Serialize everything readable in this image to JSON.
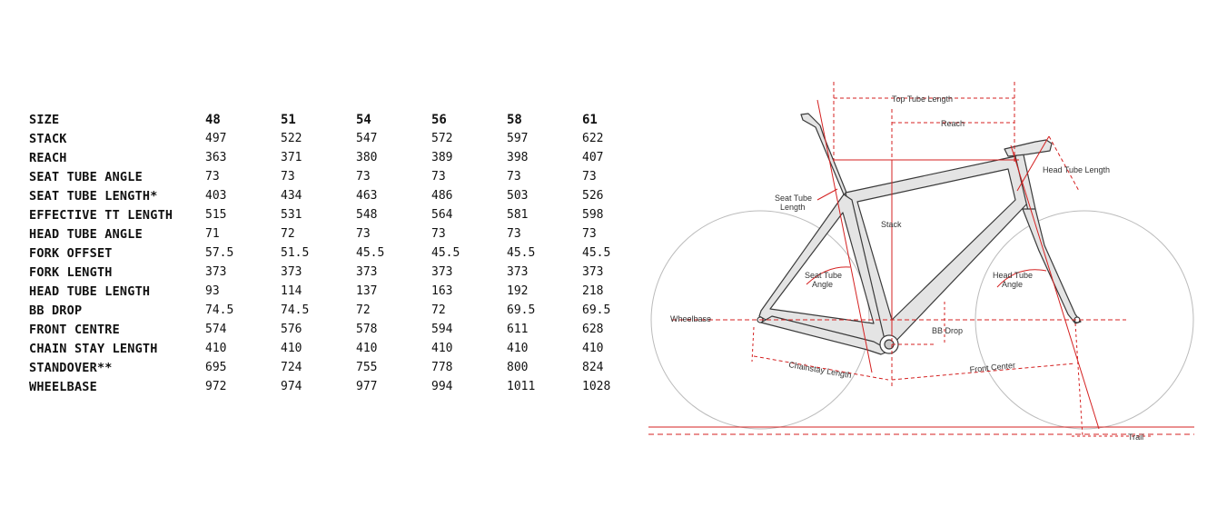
{
  "table": {
    "header_label": "SIZE",
    "sizes": [
      "48",
      "51",
      "54",
      "56",
      "58",
      "61"
    ],
    "rows": [
      {
        "label": "STACK",
        "values": [
          "497",
          "522",
          "547",
          "572",
          "597",
          "622"
        ]
      },
      {
        "label": "REACH",
        "values": [
          "363",
          "371",
          "380",
          "389",
          "398",
          "407"
        ]
      },
      {
        "label": "SEAT TUBE ANGLE",
        "values": [
          "73",
          "73",
          "73",
          "73",
          "73",
          "73"
        ]
      },
      {
        "label": "SEAT TUBE LENGTH*",
        "values": [
          "403",
          "434",
          "463",
          "486",
          "503",
          "526"
        ]
      },
      {
        "label": "EFFECTIVE TT LENGTH",
        "values": [
          "515",
          "531",
          "548",
          "564",
          "581",
          "598"
        ]
      },
      {
        "label": "HEAD TUBE ANGLE",
        "values": [
          "71",
          "72",
          "73",
          "73",
          "73",
          "73"
        ]
      },
      {
        "label": "FORK OFFSET",
        "values": [
          "57.5",
          "51.5",
          "45.5",
          "45.5",
          "45.5",
          "45.5"
        ]
      },
      {
        "label": "FORK LENGTH",
        "values": [
          "373",
          "373",
          "373",
          "373",
          "373",
          "373"
        ]
      },
      {
        "label": "HEAD TUBE LENGTH",
        "values": [
          "93",
          "114",
          "137",
          "163",
          "192",
          "218"
        ]
      },
      {
        "label": "BB DROP",
        "values": [
          "74.5",
          "74.5",
          "72",
          "72",
          "69.5",
          "69.5"
        ]
      },
      {
        "label": "FRONT CENTRE",
        "values": [
          "574",
          "576",
          "578",
          "594",
          "611",
          "628"
        ]
      },
      {
        "label": "CHAIN STAY LENGTH",
        "values": [
          "410",
          "410",
          "410",
          "410",
          "410",
          "410"
        ]
      },
      {
        "label": "STANDOVER**",
        "values": [
          "695",
          "724",
          "755",
          "778",
          "800",
          "824"
        ]
      },
      {
        "label": "WHEELBASE",
        "values": [
          "972",
          "974",
          "977",
          "994",
          "1011",
          "1028"
        ]
      }
    ]
  },
  "diagram": {
    "labels": {
      "top_tube_length": "Top Tube Length",
      "reach": "Reach",
      "head_tube_length": "Head Tube Length",
      "seat_tube_length_1": "Seat Tube",
      "seat_tube_length_2": "Length",
      "stack": "Stack",
      "seat_tube_angle_1": "Seat Tube",
      "seat_tube_angle_2": "Angle",
      "head_tube_angle_1": "Head Tube",
      "head_tube_angle_2": "Angle",
      "wheelbase": "Wheelbase",
      "bb_drop": "BB Drop",
      "chainstay_length": "Chainstay Length",
      "front_center": "Front Center",
      "trail": "Trail"
    },
    "colors": {
      "dimension": "#d42020",
      "frame_fill": "#e4e4e4",
      "frame_stroke": "#3a3a3a",
      "wheel": "#bbbbbb"
    }
  }
}
